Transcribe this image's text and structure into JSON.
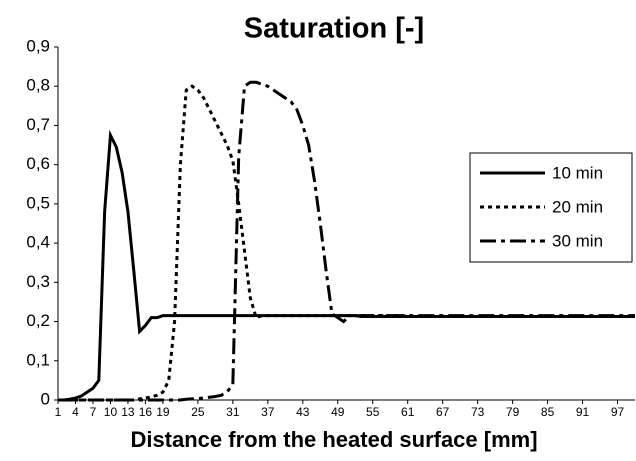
{
  "chart_data": {
    "type": "line",
    "title": "Saturation [-]",
    "x_label": "Distance from the heated surface [mm]",
    "x": [
      1,
      2,
      3,
      4,
      5,
      6,
      7,
      8,
      9,
      10,
      11,
      12,
      13,
      14,
      15,
      16,
      17,
      18,
      19,
      20,
      21,
      22,
      23,
      24,
      25,
      26,
      27,
      28,
      29,
      30,
      31,
      32,
      33,
      34,
      35,
      36,
      37,
      38,
      39,
      40,
      41,
      42,
      43,
      44,
      45,
      46,
      47,
      48,
      49,
      50,
      51,
      52,
      53,
      54,
      55,
      56,
      57,
      58,
      59,
      60,
      61,
      62,
      63,
      64,
      65,
      66,
      67,
      68,
      69,
      70,
      71,
      72,
      73,
      74,
      75,
      76,
      77,
      78,
      79,
      80,
      81,
      82,
      83,
      84,
      85,
      86,
      87,
      88,
      89,
      90,
      91,
      92,
      93,
      94,
      95,
      96,
      97,
      98,
      99,
      100
    ],
    "series": [
      {
        "name": "10 min",
        "color": "#000000",
        "dash": "none",
        "values": [
          0,
          0,
          0.002,
          0.005,
          0.01,
          0.02,
          0.03,
          0.05,
          0.48,
          0.675,
          0.645,
          0.58,
          0.48,
          0.33,
          0.175,
          0.19,
          0.21,
          0.21,
          0.215,
          0.215,
          0.215,
          0.215,
          0.215,
          0.215,
          0.215,
          0.215,
          0.215,
          0.215,
          0.215,
          0.215,
          0.215,
          0.215,
          0.215,
          0.215,
          0.215,
          0.215,
          0.215,
          0.215,
          0.215,
          0.215,
          0.215,
          0.215,
          0.215,
          0.215,
          0.215,
          0.215,
          0.215,
          0.215,
          0.215,
          0.215,
          0.215,
          0.215,
          0.213,
          0.213,
          0.213,
          0.213,
          0.213,
          0.213,
          0.213,
          0.213,
          0.213,
          0.213,
          0.213,
          0.213,
          0.213,
          0.213,
          0.213,
          0.213,
          0.213,
          0.213,
          0.213,
          0.213,
          0.213,
          0.213,
          0.213,
          0.213,
          0.213,
          0.213,
          0.213,
          0.213,
          0.213,
          0.213,
          0.213,
          0.213,
          0.213,
          0.213,
          0.213,
          0.213,
          0.213,
          0.213,
          0.213,
          0.213,
          0.213,
          0.213,
          0.213,
          0.213,
          0.213,
          0.213,
          0.213,
          0.213
        ]
      },
      {
        "name": "20 min",
        "color": "#000000",
        "dash": "4,4",
        "values": [
          0,
          0,
          0,
          0,
          0,
          0,
          0,
          0,
          0,
          0,
          0,
          0,
          0,
          0,
          0.003,
          0.005,
          0.008,
          0.012,
          0.02,
          0.05,
          0.2,
          0.6,
          0.79,
          0.8,
          0.79,
          0.77,
          0.74,
          0.71,
          0.68,
          0.65,
          0.61,
          0.5,
          0.38,
          0.26,
          0.21,
          0.215,
          0.215,
          0.215,
          0.215,
          0.215,
          0.215,
          0.215,
          0.215,
          0.215,
          0.215,
          0.215,
          0.215,
          0.215,
          0.215,
          0.215,
          0.215,
          0.215,
          0.215,
          0.215,
          0.215,
          0.215,
          0.215,
          0.215,
          0.215,
          0.215,
          0.213,
          0.213,
          0.213,
          0.213,
          0.213,
          0.213,
          0.213,
          0.213,
          0.213,
          0.213,
          0.213,
          0.213,
          0.213,
          0.213,
          0.213,
          0.213,
          0.213,
          0.213,
          0.213,
          0.213,
          0.213,
          0.213,
          0.213,
          0.213,
          0.213,
          0.213,
          0.213,
          0.213,
          0.213,
          0.213,
          0.213,
          0.213,
          0.213,
          0.213,
          0.213,
          0.213,
          0.213,
          0.213,
          0.213,
          0.213
        ]
      },
      {
        "name": "30 min",
        "color": "#000000",
        "dash": "16,5,4,5",
        "values": [
          0,
          0,
          0,
          0,
          0,
          0,
          0,
          0,
          0,
          0,
          0,
          0,
          0,
          0,
          0,
          0,
          0,
          0,
          0,
          0,
          0,
          0,
          0.002,
          0.003,
          0.004,
          0.005,
          0.007,
          0.009,
          0.012,
          0.02,
          0.04,
          0.62,
          0.8,
          0.81,
          0.81,
          0.805,
          0.8,
          0.79,
          0.78,
          0.77,
          0.76,
          0.74,
          0.7,
          0.65,
          0.56,
          0.45,
          0.33,
          0.22,
          0.21,
          0.2,
          0.215,
          0.215,
          0.215,
          0.215,
          0.215,
          0.215,
          0.215,
          0.215,
          0.215,
          0.215,
          0.215,
          0.215,
          0.215,
          0.215,
          0.215,
          0.215,
          0.215,
          0.215,
          0.215,
          0.215,
          0.215,
          0.215,
          0.215,
          0.215,
          0.215,
          0.215,
          0.215,
          0.215,
          0.215,
          0.215,
          0.215,
          0.215,
          0.215,
          0.215,
          0.215,
          0.215,
          0.215,
          0.215,
          0.215,
          0.215,
          0.215,
          0.215,
          0.215,
          0.215,
          0.215,
          0.215,
          0.215,
          0.215,
          0.215,
          0.215
        ]
      }
    ],
    "xlim": [
      1,
      100
    ],
    "xticks": [
      1,
      4,
      7,
      10,
      13,
      16,
      19,
      25,
      31,
      37,
      43,
      49,
      55,
      61,
      67,
      73,
      79,
      85,
      91,
      97
    ],
    "ylim": [
      0,
      0.9
    ],
    "yticks": [
      0,
      {
        "value": 0.1,
        "label": "0,1"
      },
      {
        "value": 0.2,
        "label": "0,2"
      },
      {
        "value": 0.3,
        "label": "0,3"
      },
      {
        "value": 0.4,
        "label": "0,4"
      },
      {
        "value": 0.5,
        "label": "0,5"
      },
      {
        "value": 0.6,
        "label": "0,6"
      },
      {
        "value": 0.7,
        "label": "0,7"
      },
      {
        "value": 0.8,
        "label": "0,8"
      },
      {
        "value": 0.9,
        "label": "0,9"
      }
    ],
    "grid": false,
    "legend": "right"
  }
}
